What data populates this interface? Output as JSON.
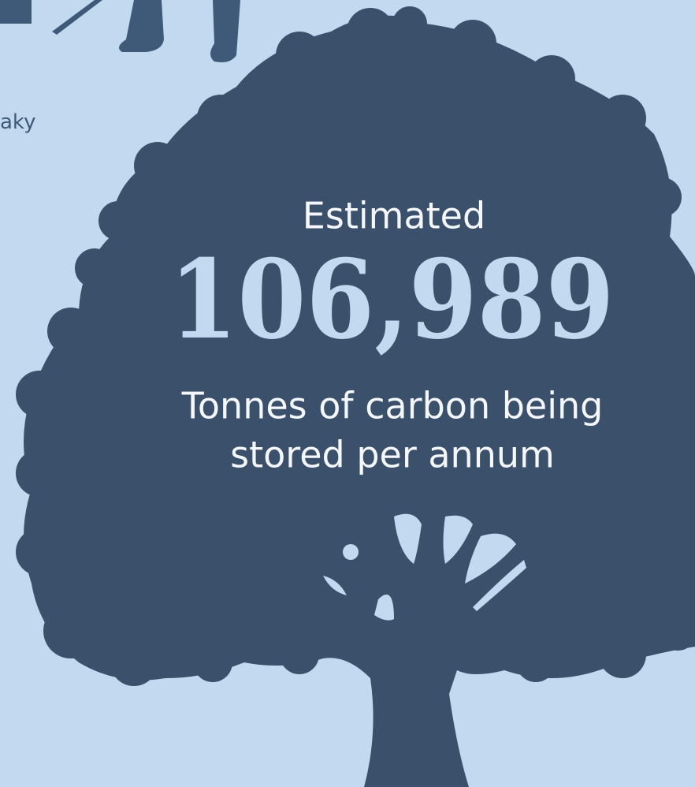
{
  "side_caption": "aky",
  "stat": {
    "prefix": "Estimated",
    "number": "106,989",
    "caption_lines": [
      "Tonnes of carbon being",
      "stored per annum"
    ]
  }
}
